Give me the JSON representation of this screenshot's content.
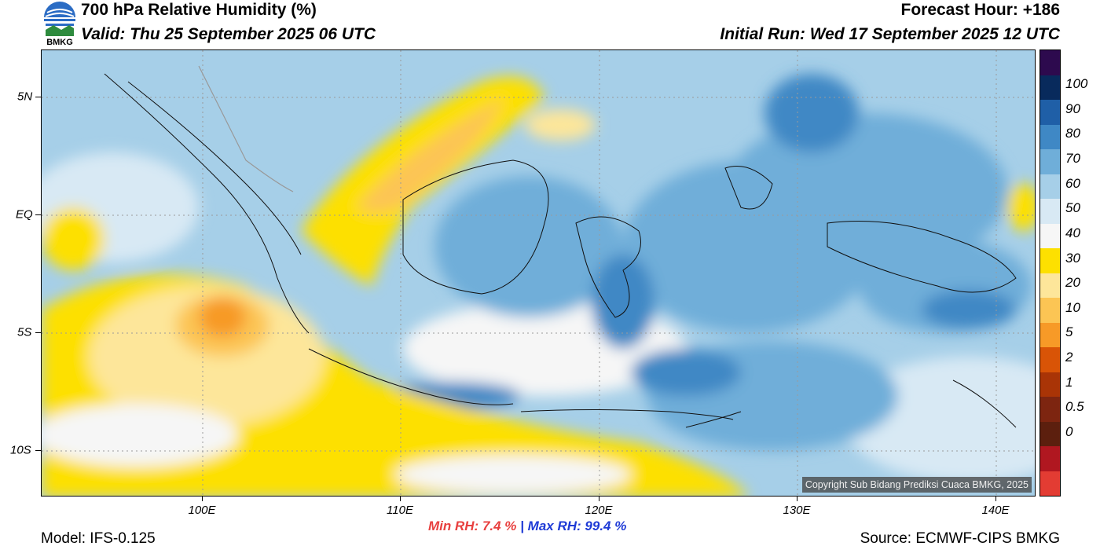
{
  "header": {
    "title": "700 hPa Relative Humidity (%)",
    "valid": "Valid: Thu 25 September 2025 06 UTC",
    "forecast_hour": "Forecast Hour: +186",
    "initial_run": "Initial Run: Wed 17 September 2025 12 UTC",
    "logo_text": "BMKG"
  },
  "map": {
    "lat_labels": [
      "5N",
      "EQ",
      "5S",
      "10S"
    ],
    "lon_labels": [
      "100E",
      "110E",
      "120E",
      "130E",
      "140E"
    ],
    "copyright": "Copyright Sub Bidang Prediksi Cuaca BMKG, 2025"
  },
  "colorbar": {
    "labels": [
      "100",
      "90",
      "80",
      "70",
      "60",
      "50",
      "40",
      "30",
      "20",
      "10",
      "5",
      "2",
      "1",
      "0.5",
      "0"
    ],
    "colors": [
      "#2d0a4e",
      "#082a5c",
      "#1f5fa7",
      "#3f88c5",
      "#6faed9",
      "#a6cfe8",
      "#d8e9f4",
      "#f6f6f6",
      "#fde000",
      "#fde69a",
      "#fcc554",
      "#f79a27",
      "#d95406",
      "#a93406",
      "#7d2510",
      "#5c1f0e",
      "#b01720",
      "#e33c33"
    ]
  },
  "stats": {
    "min_label": "Min RH:",
    "min_value": "7.4 %",
    "separator": "|",
    "max_label": "Max RH:",
    "max_value": "99.4 %"
  },
  "footer": {
    "model": "Model: IFS-0.125",
    "source": "Source: ECMWF-CIPS BMKG"
  }
}
